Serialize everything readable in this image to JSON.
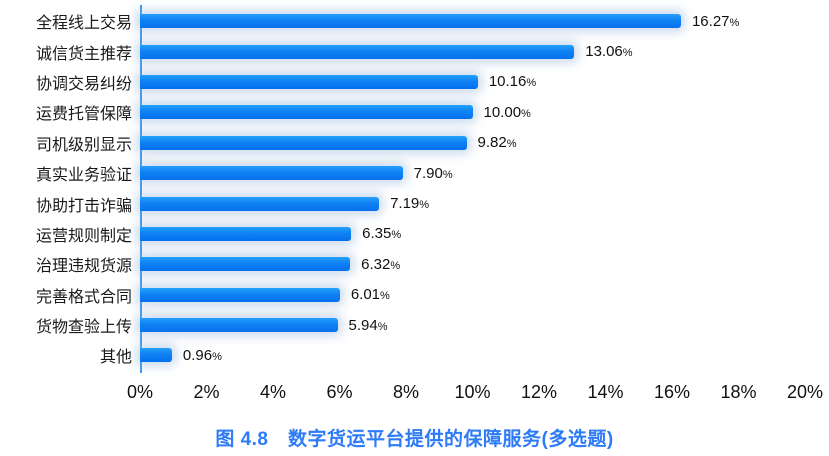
{
  "chart_data": {
    "type": "bar",
    "orientation": "horizontal",
    "title": "图 4.8　数字货运平台提供的保障服务(多选题)",
    "categories": [
      "全程线上交易",
      "诚信货主推荐",
      "协调交易纠纷",
      "运费托管保障",
      "司机级别显示",
      "真实业务验证",
      "协助打击诈骗",
      "运营规则制定",
      "治理违规货源",
      "完善格式合同",
      "货物查验上传",
      "其他"
    ],
    "values": [
      16.27,
      13.06,
      10.16,
      10.0,
      9.82,
      7.9,
      7.19,
      6.35,
      6.32,
      6.01,
      5.94,
      0.96
    ],
    "value_labels": [
      "16.27",
      "13.06",
      "10.16",
      "10.00",
      "9.82",
      "7.90",
      "7.19",
      "6.35",
      "6.32",
      "6.01",
      "5.94",
      "0.96"
    ],
    "unit": "%",
    "xlabel": "",
    "ylabel": "",
    "xlim": [
      0,
      20
    ],
    "x_ticks": [
      "0%",
      "2%",
      "4%",
      "6%",
      "8%",
      "10%",
      "12%",
      "14%",
      "16%",
      "18%",
      "20%"
    ],
    "grid": false,
    "legend": "none",
    "colors": {
      "bar_top": "#22a0fb",
      "bar_bottom": "#0470ef",
      "axis_line": "#3f97ea",
      "bar_glow": "rgba(140,172,218,0.45)",
      "text": "#111111",
      "caption": "#2e7bf7",
      "background": "#ffffff"
    }
  }
}
